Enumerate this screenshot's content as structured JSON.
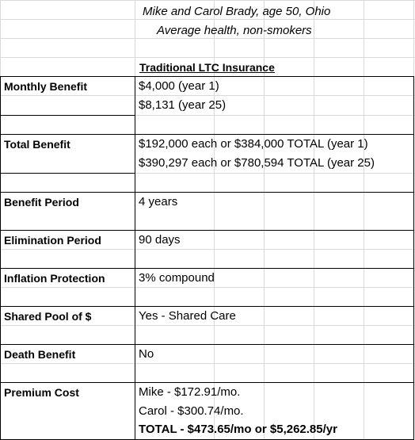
{
  "header": {
    "line1": "Mike and Carol Brady, age 50, Ohio",
    "line2": "Average health, non-smokers",
    "column_title": "Traditional LTC Insurance"
  },
  "rows": [
    {
      "label": "Monthly Benefit",
      "values": [
        "$4,000 (year 1)",
        "$8,131 (year 25)"
      ]
    },
    {
      "label": "Total Benefit",
      "values": [
        "$192,000 each or $384,000 TOTAL (year 1)",
        "$390,297 each or $780,594 TOTAL (year 25)"
      ]
    },
    {
      "label": "Benefit Period",
      "values": [
        "4 years"
      ]
    },
    {
      "label": "Elimination Period",
      "values": [
        "90 days"
      ]
    },
    {
      "label": "Inflation Protection",
      "values": [
        "3% compound"
      ]
    },
    {
      "label": "Shared Pool of $",
      "values": [
        "Yes - Shared Care"
      ]
    },
    {
      "label": "Death Benefit",
      "values": [
        "No"
      ]
    },
    {
      "label": "Premium Cost",
      "values": [
        "Mike - $172.91/mo.",
        "Carol - $300.74/mo.",
        "TOTAL - $473.65/mo or $5,262.85/yr"
      ]
    }
  ]
}
